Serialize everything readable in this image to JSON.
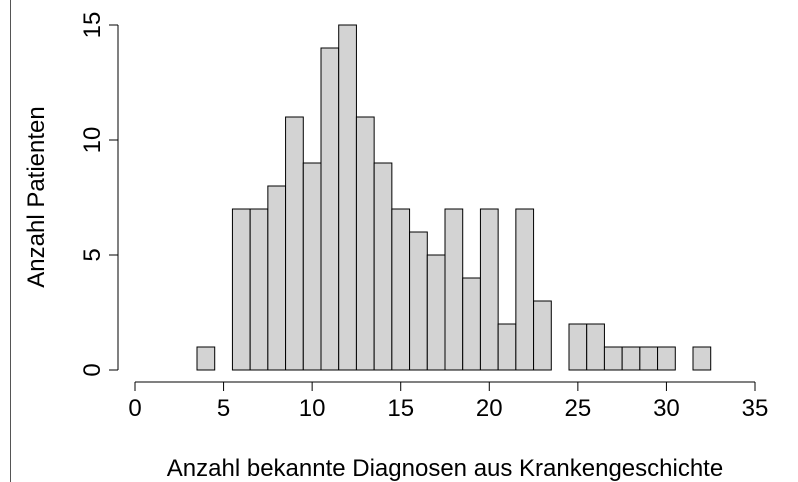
{
  "chart_data": {
    "type": "histogram",
    "x_label": "Anzahl bekannte Diagnosen aus Krankengeschichte",
    "y_label": "Anzahl Patienten",
    "bins": [
      0.5,
      1.5,
      2.5,
      3.5,
      4.5,
      5.5,
      6.5,
      7.5,
      8.5,
      9.5,
      10.5,
      11.5,
      12.5,
      13.5,
      14.5,
      15.5,
      16.5,
      17.5,
      18.5,
      19.5,
      20.5,
      21.5,
      22.5,
      23.5,
      24.5,
      25.5,
      26.5,
      27.5,
      28.5,
      29.5,
      30.5,
      31.5,
      32.5,
      33.5,
      34.5
    ],
    "values": [
      0,
      0,
      0,
      1,
      0,
      7,
      7,
      8,
      11,
      9,
      14,
      15,
      11,
      9,
      7,
      6,
      5,
      7,
      4,
      7,
      2,
      7,
      3,
      0,
      2,
      2,
      1,
      1,
      1,
      1,
      0,
      1,
      0,
      0
    ],
    "color": "#d3d3d3",
    "xlim": [
      0,
      35
    ],
    "xticks": [
      0,
      5,
      10,
      15,
      20,
      25,
      30,
      35
    ],
    "ylim": [
      0,
      15
    ],
    "yticks": [
      0,
      5,
      10,
      15
    ]
  }
}
